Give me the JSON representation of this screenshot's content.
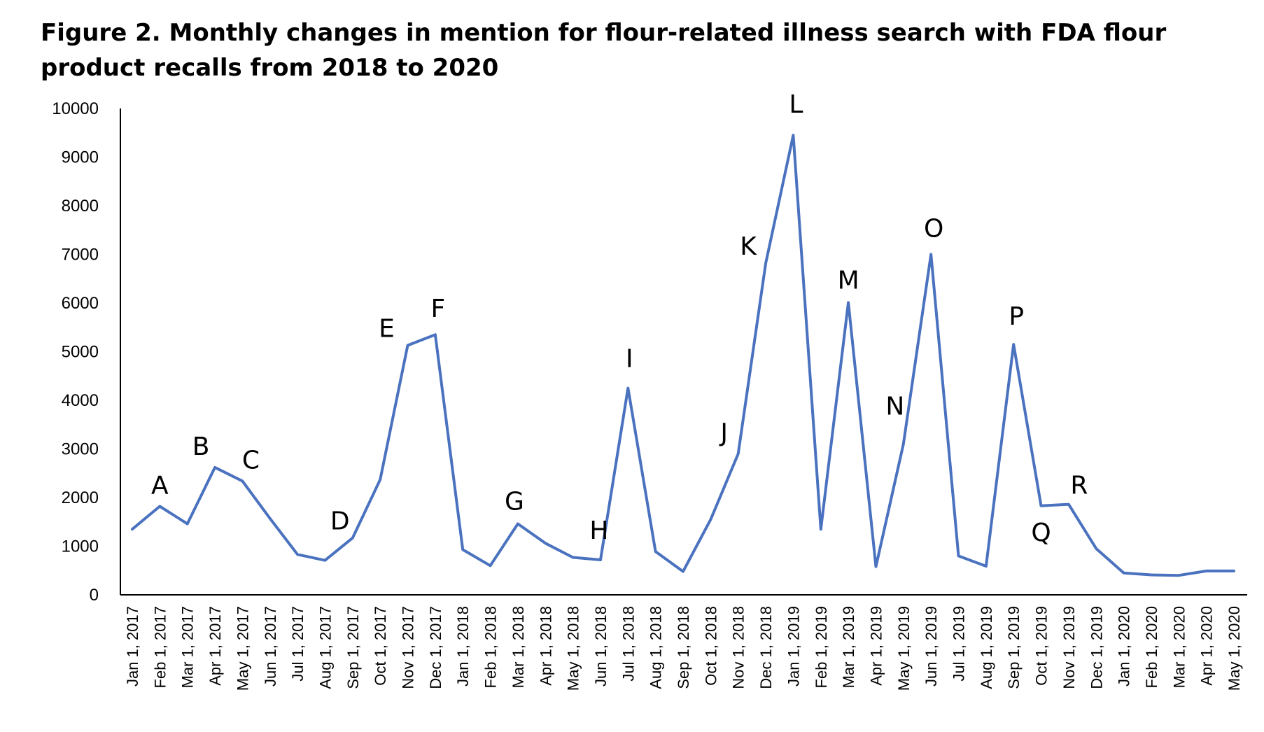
{
  "chart_data": {
    "type": "line",
    "title": "Figure 2. Monthly changes in mention for flour-related illness search with FDA flour product recalls from 2018 to 2020",
    "xlabel": "",
    "ylabel": "",
    "ylim": [
      0,
      10000
    ],
    "yticks": [
      0,
      1000,
      2000,
      3000,
      4000,
      5000,
      6000,
      7000,
      8000,
      9000,
      10000
    ],
    "grid": false,
    "legend": "none",
    "line_color": "#4A72BF",
    "categories": [
      "Jan 1, 2017",
      "Feb 1, 2017",
      "Mar 1, 2017",
      "Apr 1, 2017",
      "May 1, 2017",
      "Jun 1, 2017",
      "Jul 1, 2017",
      "Aug 1, 2017",
      "Sep 1, 2017",
      "Oct 1, 2017",
      "Nov 1, 2017",
      "Dec 1, 2017",
      "Jan 1, 2018",
      "Feb 1, 2018",
      "Mar 1, 2018",
      "Apr 1, 2018",
      "May 1, 2018",
      "Jun 1, 2018",
      "Jul 1, 2018",
      "Aug 1, 2018",
      "Sep 1, 2018",
      "Oct 1, 2018",
      "Nov 1, 2018",
      "Dec 1, 2018",
      "Jan 1, 2019",
      "Feb 1, 2019",
      "Mar 1, 2019",
      "Apr 1, 2019",
      "May 1, 2019",
      "Jun 1, 2019",
      "Jul 1, 2019",
      "Aug 1, 2019",
      "Sep 1, 2019",
      "Oct 1, 2019",
      "Nov 1, 2019",
      "Dec 1, 2019",
      "Jan 1, 2020",
      "Feb 1, 2020",
      "Mar 1, 2020",
      "Apr 1, 2020",
      "May 1, 2020"
    ],
    "series": [
      {
        "values": [
          1350,
          1820,
          1460,
          2620,
          2340,
          1570,
          830,
          710,
          1170,
          2370,
          5130,
          5350,
          930,
          600,
          1460,
          1060,
          770,
          720,
          4250,
          890,
          480,
          1550,
          2900,
          6820,
          9450,
          1350,
          6010,
          580,
          3100,
          7000,
          800,
          590,
          5150,
          1830,
          1860,
          950,
          450,
          410,
          400,
          490,
          490
        ]
      }
    ],
    "annotations": [
      {
        "text": "A",
        "category": "Feb 1, 2017"
      },
      {
        "text": "B",
        "category": "Apr 1, 2017"
      },
      {
        "text": "C",
        "category": "May 1, 2017"
      },
      {
        "text": "D",
        "category": "Sep 1, 2017"
      },
      {
        "text": "E",
        "category": "Nov 1, 2017"
      },
      {
        "text": "F",
        "category": "Dec 1, 2017"
      },
      {
        "text": "G",
        "category": "Mar 1, 2018"
      },
      {
        "text": "H",
        "category": "Jun 1, 2018"
      },
      {
        "text": "I",
        "category": "Jul 1, 2018"
      },
      {
        "text": "J",
        "category": "Nov 1, 2018"
      },
      {
        "text": "K",
        "category": "Dec 1, 2018"
      },
      {
        "text": "L",
        "category": "Jan 1, 2019"
      },
      {
        "text": "M",
        "category": "Mar 1, 2019"
      },
      {
        "text": "N",
        "category": "May 1, 2019"
      },
      {
        "text": "O",
        "category": "Jun 1, 2019"
      },
      {
        "text": "P",
        "category": "Sep 1, 2019"
      },
      {
        "text": "Q",
        "category": "Oct 1, 2019"
      },
      {
        "text": "R",
        "category": "Nov 1, 2019"
      }
    ]
  }
}
